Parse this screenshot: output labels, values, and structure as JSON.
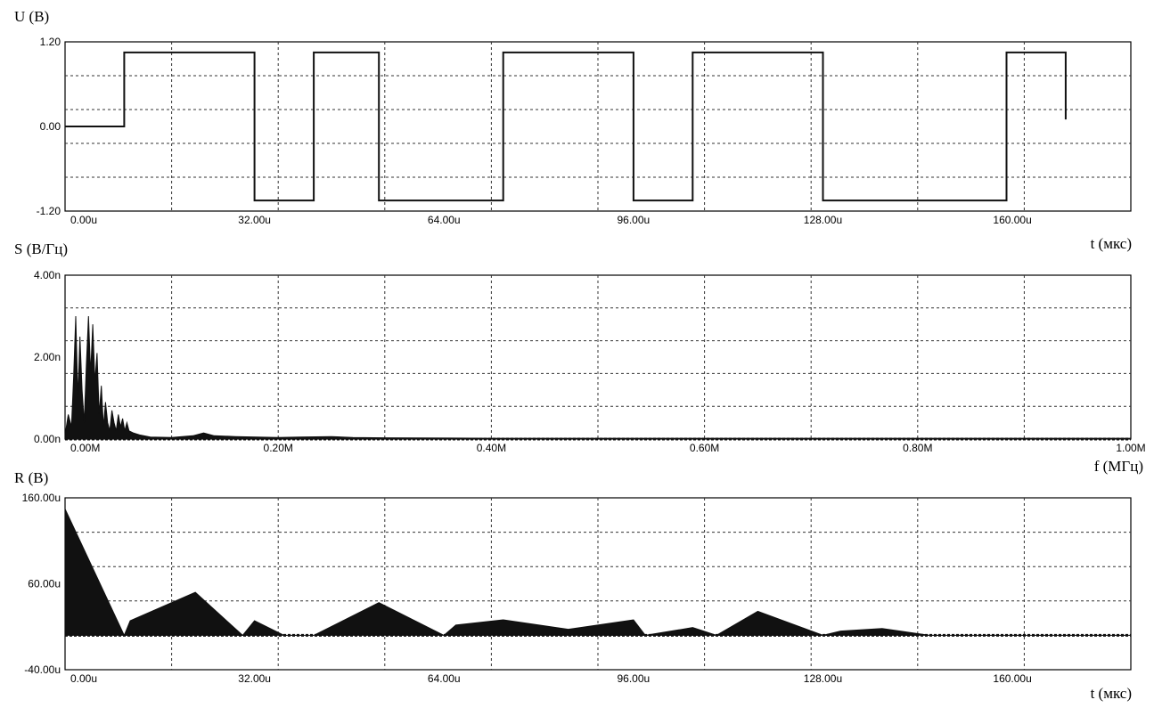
{
  "colors": {
    "trace": "#111111",
    "grid": "#333333",
    "frame": "#000000",
    "background": "#ffffff"
  },
  "chart_data": [
    {
      "type": "line",
      "ylabel": "U (B)",
      "xlabel": "t (мкс)",
      "xlim": [
        0,
        180
      ],
      "ylim": [
        -1.2,
        1.2
      ],
      "xticks": [
        0,
        32,
        64,
        96,
        128,
        160
      ],
      "xtick_labels": [
        "0.00u",
        "32.00u",
        "64.00u",
        "96.00u",
        "128.00u",
        "160.00u"
      ],
      "yticks": [
        1.2,
        0,
        -1.2
      ],
      "ytick_labels": [
        "1.20",
        "0.00",
        "-1.20"
      ],
      "grid": true,
      "series": [
        {
          "x": [
            0,
            10,
            10,
            32,
            32,
            42,
            42,
            53,
            53,
            74,
            74,
            96,
            96,
            106,
            106,
            128,
            128,
            159,
            159,
            169,
            169
          ],
          "y": [
            0,
            0,
            1.05,
            1.05,
            -1.05,
            -1.05,
            1.05,
            1.05,
            -1.05,
            -1.05,
            1.05,
            1.05,
            -1.05,
            -1.05,
            1.05,
            1.05,
            -1.05,
            -1.05,
            1.05,
            1.05,
            0.1
          ]
        }
      ]
    },
    {
      "type": "area",
      "ylabel": "S (В/Гц)",
      "xlabel": "f (МГц)",
      "xlim": [
        0,
        1.0
      ],
      "ylim": [
        0,
        4
      ],
      "xticks": [
        0,
        0.2,
        0.4,
        0.6,
        0.8,
        1.0
      ],
      "xtick_labels": [
        "0.00M",
        "0.20M",
        "0.40M",
        "0.60M",
        "0.80M",
        "1.00M"
      ],
      "yticks": [
        4,
        2,
        0
      ],
      "ytick_labels": [
        "4.00n",
        "2.00n",
        "0.00n"
      ],
      "grid": true,
      "series": [
        {
          "x": [
            0,
            0.003,
            0.006,
            0.008,
            0.01,
            0.012,
            0.014,
            0.016,
            0.018,
            0.02,
            0.022,
            0.024,
            0.026,
            0.028,
            0.03,
            0.032,
            0.034,
            0.036,
            0.038,
            0.04,
            0.042,
            0.044,
            0.046,
            0.048,
            0.05,
            0.052,
            0.054,
            0.056,
            0.058,
            0.06,
            0.064,
            0.07,
            0.08,
            0.1,
            0.12,
            0.13,
            0.14,
            0.16,
            0.18,
            0.2,
            0.22,
            0.25,
            0.27,
            0.3,
            0.4,
            0.5,
            0.6,
            0.7,
            0.8,
            0.9,
            1.0
          ],
          "y": [
            0.1,
            0.6,
            0.3,
            1.5,
            3.0,
            1.0,
            2.5,
            1.2,
            0.4,
            1.8,
            3.0,
            1.6,
            2.8,
            1.4,
            2.1,
            0.6,
            1.3,
            0.3,
            0.9,
            0.4,
            0.2,
            0.7,
            0.4,
            0.2,
            0.6,
            0.3,
            0.5,
            0.2,
            0.4,
            0.2,
            0.15,
            0.1,
            0.05,
            0.04,
            0.08,
            0.15,
            0.08,
            0.06,
            0.05,
            0.04,
            0.05,
            0.06,
            0.04,
            0.03,
            0.02,
            0.02,
            0.02,
            0.02,
            0.02,
            0.02,
            0.02
          ]
        }
      ]
    },
    {
      "type": "area",
      "ylabel": "R (B)",
      "xlabel": "t (мкс)",
      "xlim": [
        0,
        180
      ],
      "ylim": [
        -40,
        160
      ],
      "xticks": [
        0,
        32,
        64,
        96,
        128,
        160
      ],
      "xtick_labels": [
        "0.00u",
        "32.00u",
        "64.00u",
        "96.00u",
        "128.00u",
        "160.00u"
      ],
      "yticks": [
        160,
        60,
        -40
      ],
      "ytick_labels": [
        "160.00u",
        "60.00u",
        "-40.00u"
      ],
      "grid": true,
      "series": [
        {
          "x": [
            0,
            10,
            11,
            22,
            30,
            32,
            37,
            42,
            53,
            64,
            66,
            74,
            85,
            96,
            98,
            106,
            110,
            117,
            128,
            131,
            138,
            146,
            160,
            180
          ],
          "y": [
            147,
            0,
            17,
            50,
            0,
            17,
            0,
            0,
            38,
            0,
            12,
            18,
            7,
            18,
            0,
            9,
            0,
            28,
            0,
            5,
            8,
            0,
            0,
            0
          ]
        }
      ]
    }
  ]
}
